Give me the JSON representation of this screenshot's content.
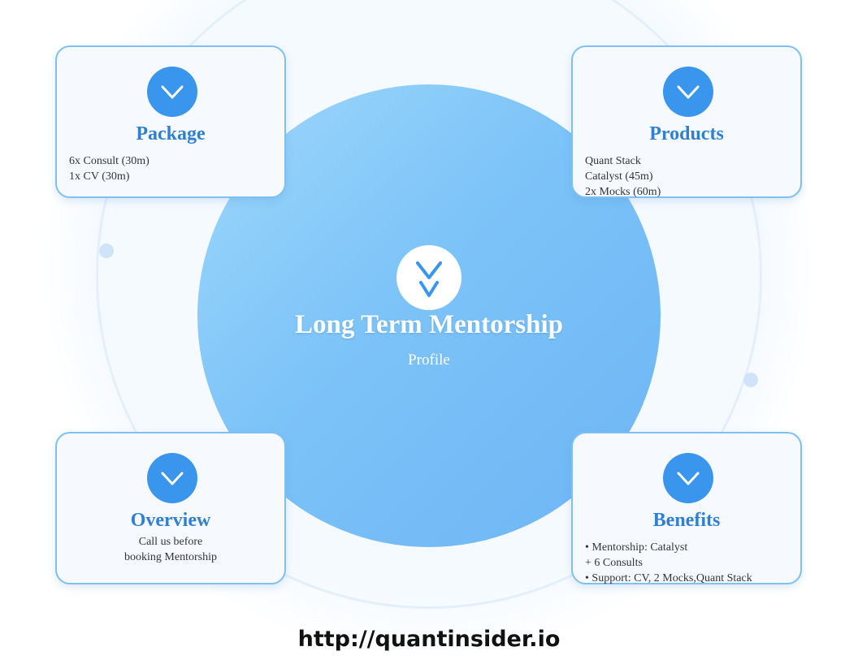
{
  "center": {
    "title": "Long Term Mentorship",
    "subtitle": "Profile",
    "icon": "double-chevron-down-icon"
  },
  "cards": {
    "package": {
      "title": "Package",
      "icon": "chevron-down-icon",
      "lines": [
        "6x Consult (30m)",
        "1x CV (30m)"
      ]
    },
    "products": {
      "title": "Products",
      "icon": "chevron-down-icon",
      "lines": [
        "Quant Stack",
        "Catalyst (45m)",
        "2x Mocks (60m)"
      ]
    },
    "overview": {
      "title": "Overview",
      "icon": "chevron-down-icon",
      "lines": [
        "Call us before",
        "booking Mentorship"
      ]
    },
    "benefits": {
      "title": "Benefits",
      "icon": "chevron-down-icon",
      "lines": [
        "• Mentorship: Catalyst",
        "+ 6 Consults",
        "• Support: CV, 2 Mocks,Quant Stack"
      ]
    }
  },
  "footer": {
    "url": "http://quantinsider.io"
  },
  "colors": {
    "accent": "#3a96ec",
    "card_title": "#2f7fd3",
    "card_border": "#7fc0f3",
    "center_gradient_start": "#9fd8fb",
    "center_gradient_end": "#6db5f5"
  }
}
